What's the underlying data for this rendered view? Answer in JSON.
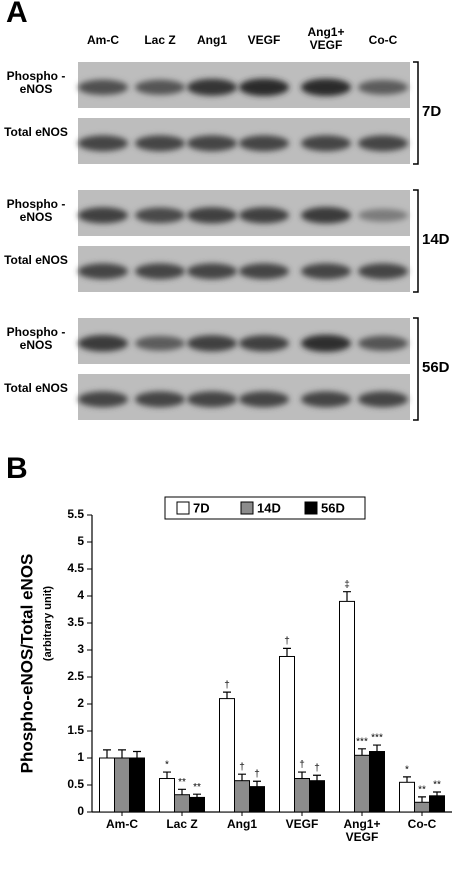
{
  "panel_a": {
    "label": "A",
    "columns": [
      "Am-C",
      "Lac Z",
      "Ang1",
      "VEGF",
      "Ang1+ VEGF",
      "Co-C"
    ],
    "groups": [
      {
        "label": "7D",
        "rows": [
          "Phospho -eNOS",
          "Total eNOS"
        ]
      },
      {
        "label": "14D",
        "rows": [
          "Phospho -eNOS",
          "Total eNOS"
        ]
      },
      {
        "label": "56D",
        "rows": [
          "Phospho -eNOS",
          "Total eNOS"
        ]
      }
    ]
  },
  "chart_data": {
    "type": "bar",
    "panel_label": "B",
    "y_label": "Phospho-eNOS/Total eNOS",
    "y_sublabel": "(arbitrary unit)",
    "categories": [
      "Am-C",
      "Lac Z",
      "Ang1",
      "VEGF",
      "Ang1+ VEGF",
      "Co-C"
    ],
    "series": [
      {
        "name": "7D",
        "color": "#ffffff",
        "values": [
          1.0,
          0.62,
          2.1,
          2.88,
          3.9,
          0.55
        ],
        "errors": [
          0.15,
          0.12,
          0.12,
          0.15,
          0.18,
          0.1
        ],
        "annotations": [
          null,
          "*",
          "†",
          "†",
          "‡",
          "*"
        ]
      },
      {
        "name": "14D",
        "color": "#8c8c8c",
        "values": [
          1.0,
          0.32,
          0.58,
          0.62,
          1.05,
          0.18
        ],
        "errors": [
          0.15,
          0.1,
          0.12,
          0.12,
          0.12,
          0.1
        ],
        "annotations": [
          null,
          "**",
          "†",
          "†",
          "***",
          "**"
        ]
      },
      {
        "name": "56D",
        "color": "#000000",
        "values": [
          1.0,
          0.27,
          0.47,
          0.58,
          1.12,
          0.3
        ],
        "errors": [
          0.12,
          0.06,
          0.1,
          0.1,
          0.12,
          0.07
        ],
        "annotations": [
          null,
          "**",
          "†",
          "†",
          "***",
          "**"
        ]
      }
    ],
    "ylim": [
      0,
      5.5
    ],
    "yticks": [
      0,
      0.5,
      1,
      1.5,
      2,
      2.5,
      3,
      3.5,
      4,
      4.5,
      5,
      5.5
    ],
    "legend": "top"
  }
}
